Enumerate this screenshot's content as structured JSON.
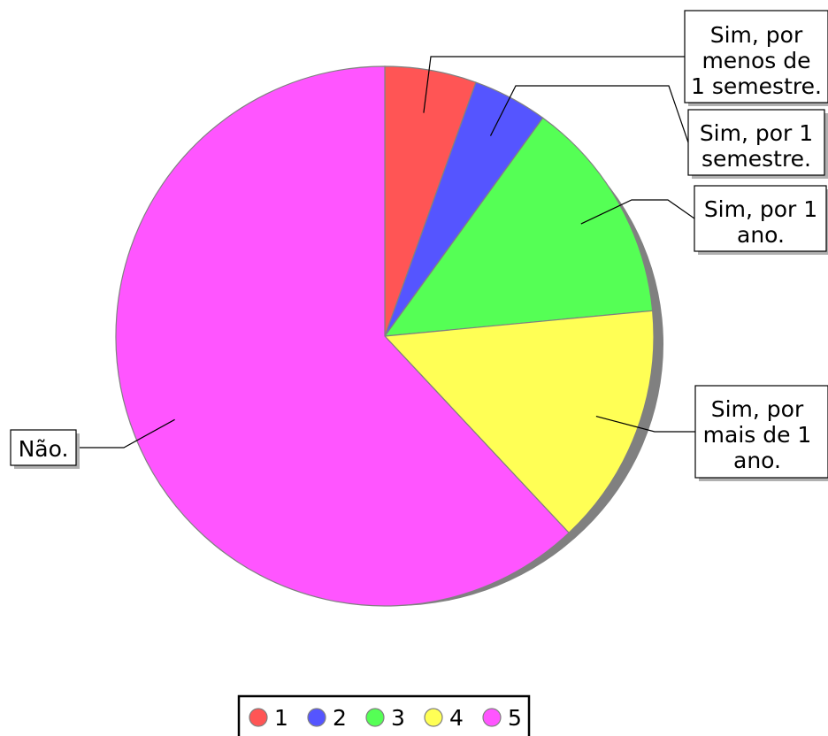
{
  "chart_data": {
    "type": "pie",
    "title": "",
    "categories": [
      "1",
      "2",
      "3",
      "4",
      "5"
    ],
    "values": [
      5.5,
      4.5,
      13.5,
      14.5,
      62.0
    ],
    "slice_labels": [
      "Sim, por menos de 1 semestre.",
      "Sim, por 1 semestre.",
      "Sim, por 1 ano.",
      "Sim, por mais de 1 ano.",
      "Não."
    ],
    "colors": [
      "#ff5555",
      "#5555ff",
      "#55ff55",
      "#ffff55",
      "#ff55ff"
    ],
    "legend": {
      "placement": "bottom-center",
      "entries": [
        "1",
        "2",
        "3",
        "4",
        "5"
      ]
    },
    "shadow": true
  }
}
